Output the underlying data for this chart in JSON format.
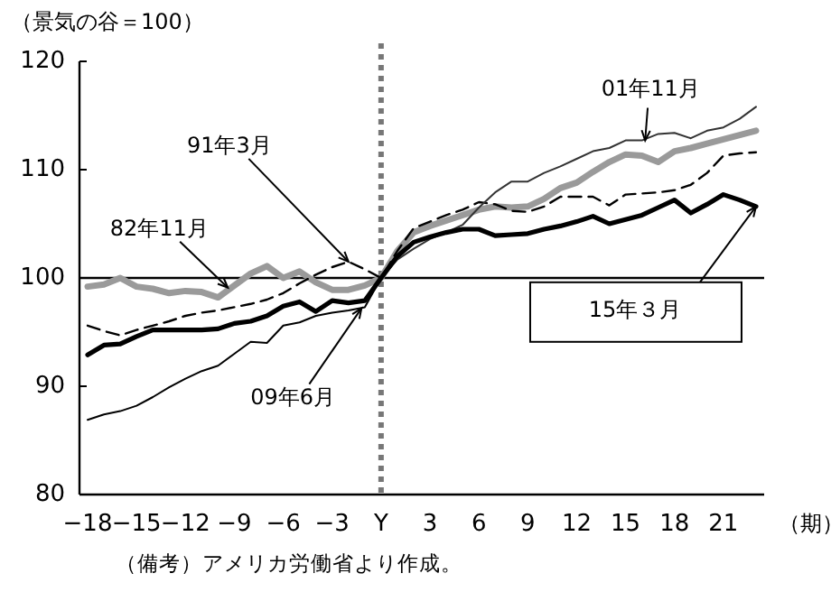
{
  "chart_data": {
    "type": "line",
    "ylabel": "（景気の谷＝100）",
    "xlabel": "（期）",
    "xlim": [
      -18.5,
      23.5
    ],
    "ylim": [
      80,
      120
    ],
    "xticks": [
      -18,
      -15,
      -12,
      -9,
      -6,
      -3,
      {
        "value": 0,
        "label": "Y"
      },
      3,
      6,
      9,
      12,
      15,
      18,
      21
    ],
    "yticks": [
      80,
      90,
      100,
      110,
      120
    ],
    "grid": false,
    "marker": "none",
    "ref_lines": [
      {
        "axis": "x",
        "value": 0,
        "label": null,
        "color": "#777777",
        "line_style": "dotted"
      },
      {
        "axis": "y",
        "value": 100,
        "label": null,
        "color": "#000000",
        "line_style": "solid"
      }
    ],
    "annotations": [
      {
        "text": "82年11月",
        "x": -9.4,
        "y": 99.1
      },
      {
        "text": "91年3月",
        "x": -2,
        "y": 101.5
      },
      {
        "text": "09年6月",
        "x": -1.2,
        "y": 97.2
      },
      {
        "text": "01年11月",
        "x": 16.2,
        "y": 112.7
      },
      {
        "text": "15年３月",
        "x": 23,
        "y": 106.6
      },
      "（備考）アメリカ労働省より作成。"
    ],
    "series": [
      {
        "color": "#9a9a9a",
        "line_style": "solid",
        "x": [
          -18,
          -17,
          -16,
          -15,
          -14,
          -13,
          -12,
          -11,
          -10,
          -9,
          -8,
          -7,
          -6,
          -5,
          -4,
          -3,
          -2,
          -1,
          0,
          1,
          2,
          3,
          4,
          5,
          6,
          7,
          8,
          9,
          10,
          11,
          12,
          13,
          14,
          15,
          16,
          17,
          18,
          19,
          20,
          21,
          22,
          23
        ],
        "values": [
          99.2,
          99.4,
          100.0,
          99.2,
          99.0,
          98.6,
          98.8,
          98.7,
          98.2,
          99.3,
          100.4,
          101.1,
          100.0,
          100.6,
          99.6,
          98.9,
          98.9,
          99.3,
          100,
          102.5,
          104.2,
          104.8,
          105.3,
          105.8,
          106.3,
          106.6,
          106.5,
          106.6,
          107.3,
          108.3,
          108.8,
          109.8,
          110.7,
          111.4,
          111.3,
          110.7,
          111.7,
          112.0,
          112.4,
          112.8,
          113.2,
          113.6
        ]
      },
      {
        "color": "#000000",
        "line_style": "dashed",
        "x": [
          -18,
          -17,
          -16,
          -15,
          -14,
          -13,
          -12,
          -11,
          -10,
          -9,
          -8,
          -7,
          -6,
          -5,
          -4,
          -3,
          -2,
          -1,
          0,
          1,
          2,
          3,
          4,
          5,
          6,
          7,
          8,
          9,
          10,
          11,
          12,
          13,
          14,
          15,
          16,
          17,
          18,
          19,
          20,
          21,
          22,
          23
        ],
        "values": [
          95.6,
          95.1,
          94.7,
          95.2,
          95.6,
          96.0,
          96.5,
          96.8,
          97.0,
          97.3,
          97.6,
          98.0,
          98.6,
          99.5,
          100.3,
          101.0,
          101.5,
          100.8,
          100,
          102.5,
          104.6,
          105.2,
          105.8,
          106.3,
          107.0,
          106.8,
          106.2,
          106.1,
          106.6,
          107.5,
          107.5,
          107.5,
          106.7,
          107.7,
          107.8,
          107.9,
          108.1,
          108.6,
          109.7,
          111.3,
          111.5,
          111.6
        ]
      },
      {
        "color": "#000000",
        "line_style": "solid",
        "x": [
          -18,
          -17,
          -16,
          -15,
          -14,
          -13,
          -12,
          -11,
          -10,
          -9,
          -8,
          -7,
          -6,
          -5,
          -4,
          -3,
          -2,
          -1,
          0
        ],
        "values": [
          86.9,
          87.4,
          87.7,
          88.2,
          89.0,
          89.9,
          90.7,
          91.4,
          91.9,
          93.0,
          94.1,
          94.0,
          95.6,
          95.9,
          96.5,
          96.8,
          97.0,
          97.3,
          100
        ]
      },
      {
        "color": "#333333",
        "line_style": "solid",
        "x": [
          0,
          1,
          2,
          3,
          4,
          5,
          6,
          7,
          8,
          9,
          10,
          11,
          12,
          13,
          14,
          15,
          16,
          17,
          18,
          19,
          20,
          21,
          22,
          23
        ],
        "values": [
          100,
          101.7,
          102.7,
          103.6,
          104.2,
          104.9,
          106.5,
          107.9,
          108.9,
          108.9,
          109.7,
          110.3,
          111.0,
          111.7,
          112.0,
          112.7,
          112.7,
          113.3,
          113.4,
          112.9,
          113.6,
          113.9,
          114.7,
          115.8
        ]
      },
      {
        "color": "#000000",
        "line_style": "solid",
        "x": [
          -18,
          -17,
          -16,
          -15,
          -14,
          -13,
          -12,
          -11,
          -10,
          -9,
          -8,
          -7,
          -6,
          -5,
          -4,
          -3,
          -2,
          -1,
          0,
          1,
          2,
          3,
          4,
          5,
          6,
          7,
          8,
          9,
          10,
          11,
          12,
          13,
          14,
          15,
          16,
          17,
          18,
          19,
          20,
          21,
          22,
          23
        ],
        "values": [
          92.9,
          93.8,
          93.9,
          94.6,
          95.2,
          95.2,
          95.2,
          95.2,
          95.3,
          95.8,
          96.0,
          96.5,
          97.4,
          97.8,
          96.9,
          97.9,
          97.7,
          97.9,
          100,
          102.0,
          103.3,
          103.8,
          104.2,
          104.5,
          104.5,
          103.9,
          104.0,
          104.1,
          104.5,
          104.8,
          105.2,
          105.7,
          105.0,
          105.4,
          105.8,
          106.5,
          107.2,
          106.0,
          106.8,
          107.7,
          107.2,
          106.6
        ]
      }
    ]
  }
}
